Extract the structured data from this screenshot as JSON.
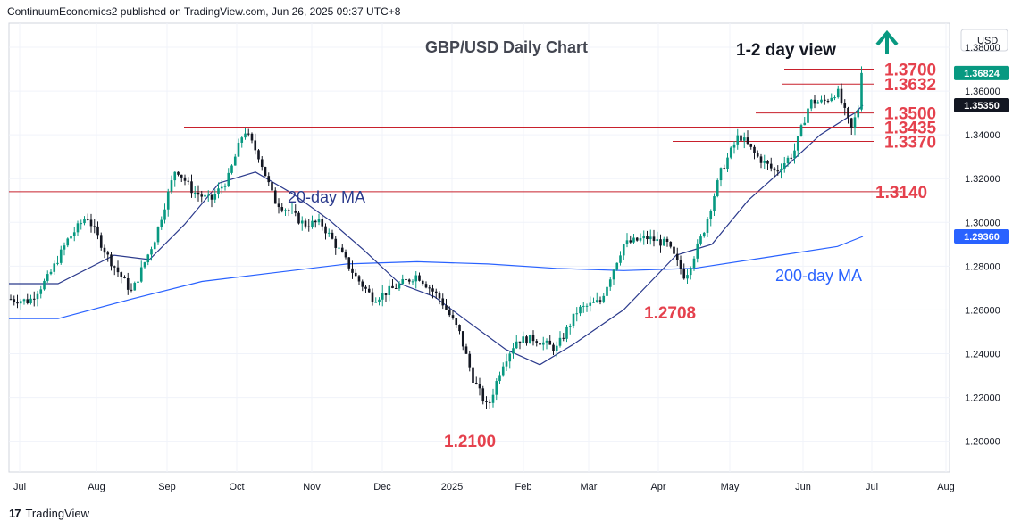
{
  "header": {
    "published": "ContinuumEconomics2 published on TradingView.com, Jun 26, 2025 09:37 UTC+8"
  },
  "footer": {
    "brand": "TradingView",
    "logo": "17"
  },
  "chart_data": {
    "type": "candlestick",
    "title": "GBP/USD Daily Chart",
    "view_label": "1-2 day view",
    "currency": "USD",
    "ylim": [
      1.186,
      1.391
    ],
    "y_ticks": [
      "1.38000",
      "1.36000",
      "1.34000",
      "1.32000",
      "1.30000",
      "1.28000",
      "1.26000",
      "1.24000",
      "1.22000",
      "1.20000"
    ],
    "x_ticks": [
      "Jul",
      "Aug",
      "Sep",
      "Oct",
      "Nov",
      "Dec",
      "2025",
      "Feb",
      "Mar",
      "Apr",
      "May",
      "Jun",
      "Jul",
      "Aug"
    ],
    "price_labels": [
      {
        "text": "1.36824",
        "value": 1.36824,
        "color": "#089981"
      },
      {
        "text": "1.35350",
        "value": 1.3535,
        "color": "#131722"
      },
      {
        "text": "1.29360",
        "value": 1.2936,
        "color": "#2962ff"
      }
    ],
    "levels": [
      {
        "label": "1.3700",
        "value": 1.37
      },
      {
        "label": "1.3632",
        "value": 1.3632
      },
      {
        "label": "1.3500",
        "value": 1.35
      },
      {
        "label": "1.3435",
        "value": 1.3435
      },
      {
        "label": "1.3370",
        "value": 1.337
      },
      {
        "label": "1.3140",
        "value": 1.314
      }
    ],
    "annotations": [
      {
        "text": "20-day MA",
        "color": "#2b3a8c"
      },
      {
        "text": "200-day MA",
        "color": "#2962ff"
      },
      {
        "text": "1.2708",
        "color": "#e5414d"
      },
      {
        "text": "1.2100",
        "color": "#e5414d"
      }
    ],
    "trend_arrow": "up",
    "colors": {
      "up": "#089981",
      "down": "#131722",
      "levels": "#c8202c",
      "ma20": "#2b3a8c",
      "ma200": "#2962ff",
      "arrow": "#089981"
    },
    "anchors": [
      [
        "Jul",
        1.264
      ],
      [
        "Jul",
        1.275
      ],
      [
        "Jul",
        1.292
      ],
      [
        "Jul",
        1.303
      ],
      [
        "Aug",
        1.284
      ],
      [
        "Aug",
        1.268
      ],
      [
        "Aug",
        1.293
      ],
      [
        "Sep",
        1.325
      ],
      [
        "Sep",
        1.314
      ],
      [
        "Sep",
        1.31
      ],
      [
        "Sep",
        1.32
      ],
      [
        "Oct",
        1.3425
      ],
      [
        "Oct",
        1.33
      ],
      [
        "Oct",
        1.31
      ],
      [
        "Oct",
        1.305
      ],
      [
        "Oct",
        1.299
      ],
      [
        "Nov",
        1.3
      ],
      [
        "Nov",
        1.288
      ],
      [
        "Nov",
        1.275
      ],
      [
        "Nov",
        1.265
      ],
      [
        "Dec",
        1.27
      ],
      [
        "Dec",
        1.276
      ],
      [
        "Dec",
        1.265
      ],
      [
        "2025",
        1.25
      ],
      [
        "2025",
        1.228
      ],
      [
        "2025",
        1.215
      ],
      [
        "2025",
        1.235
      ],
      [
        "2025",
        1.246
      ],
      [
        "Feb",
        1.247
      ],
      [
        "Feb",
        1.242
      ],
      [
        "Feb",
        1.26
      ],
      [
        "Mar",
        1.264
      ],
      [
        "Mar",
        1.29
      ],
      [
        "Mar",
        1.293
      ],
      [
        "Apr",
        1.29
      ],
      [
        "Apr",
        1.275
      ],
      [
        "Apr",
        1.295
      ],
      [
        "Apr",
        1.323
      ],
      [
        "May",
        1.34
      ],
      [
        "May",
        1.33
      ],
      [
        "May",
        1.323
      ],
      [
        "May",
        1.332
      ],
      [
        "Jun",
        1.355
      ],
      [
        "Jun",
        1.355
      ],
      [
        "Jun",
        1.36
      ],
      [
        "Jun",
        1.342
      ],
      [
        "Jun",
        1.362
      ],
      [
        "Jul",
        1.3682
      ]
    ],
    "ma20_anchors": [
      [
        "Jul",
        1.272
      ],
      [
        "Aug",
        1.285
      ],
      [
        "Aug",
        1.283
      ],
      [
        "Sep",
        1.299
      ],
      [
        "Sep",
        1.318
      ],
      [
        "Oct",
        1.323
      ],
      [
        "Oct",
        1.313
      ],
      [
        "Nov",
        1.301
      ],
      [
        "Nov",
        1.287
      ],
      [
        "Dec",
        1.272
      ],
      [
        "Dec",
        1.266
      ],
      [
        "2025",
        1.254
      ],
      [
        "2025",
        1.242
      ],
      [
        "Feb",
        1.235
      ],
      [
        "Feb",
        1.244
      ],
      [
        "Mar",
        1.26
      ],
      [
        "Apr",
        1.285
      ],
      [
        "Apr",
        1.29
      ],
      [
        "May",
        1.31
      ],
      [
        "May",
        1.325
      ],
      [
        "Jun",
        1.34
      ],
      [
        "Jun",
        1.35
      ],
      [
        "Jul",
        1.3535
      ]
    ],
    "ma200_anchors": [
      [
        "Jul",
        1.256
      ],
      [
        "Aug",
        1.265
      ],
      [
        "Sep",
        1.273
      ],
      [
        "Oct",
        1.277
      ],
      [
        "Nov",
        1.281
      ],
      [
        "Dec",
        1.282
      ],
      [
        "2025",
        1.281
      ],
      [
        "Feb",
        1.279
      ],
      [
        "Mar",
        1.278
      ],
      [
        "Apr",
        1.279
      ],
      [
        "May",
        1.284
      ],
      [
        "Jun",
        1.289
      ],
      [
        "Jul",
        1.2936
      ]
    ]
  }
}
